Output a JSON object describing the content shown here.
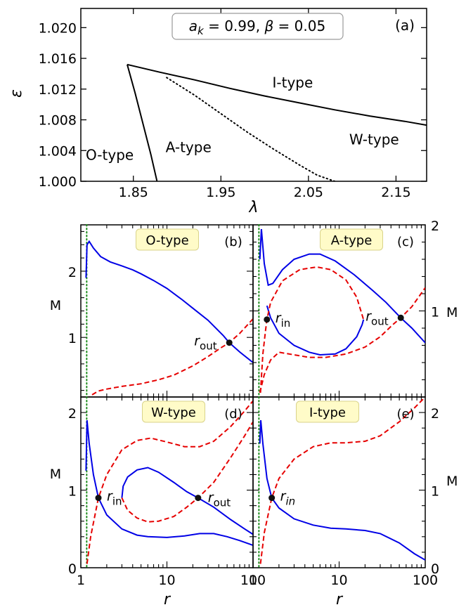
{
  "chart_data": [
    {
      "id": "a",
      "type": "line",
      "panel_label": "(a)",
      "legend_box": "a_k = 0.99, β = 0.05",
      "params": {
        "a_k": "0.99",
        "beta": "0.05"
      },
      "xlabel": "λ",
      "ylabel": "ε",
      "xlim": [
        1.79,
        2.185
      ],
      "ylim": [
        1.0,
        1.0225
      ],
      "xticks": [
        {
          "v": 1.85,
          "label": "1.85"
        },
        {
          "v": 1.95,
          "label": "1.95"
        },
        {
          "v": 2.05,
          "label": "2.05"
        },
        {
          "v": 2.15,
          "label": "2.15"
        }
      ],
      "yticks": [
        {
          "v": 1.0,
          "label": "1.000"
        },
        {
          "v": 1.004,
          "label": "1.004"
        },
        {
          "v": 1.008,
          "label": "1.008"
        },
        {
          "v": 1.012,
          "label": "1.012"
        },
        {
          "v": 1.016,
          "label": "1.016"
        },
        {
          "v": 1.02,
          "label": "1.020"
        }
      ],
      "series": [
        {
          "style": "solid",
          "points": [
            [
              1.843,
              1.0152
            ],
            [
              1.852,
              1.0115
            ],
            [
              1.861,
              1.0075
            ],
            [
              1.87,
              1.0035
            ],
            [
              1.877,
              1.0
            ]
          ]
        },
        {
          "style": "solid",
          "points": [
            [
              1.843,
              1.0152
            ],
            [
              1.88,
              1.0142
            ],
            [
              1.92,
              1.0132
            ],
            [
              1.96,
              1.0121
            ],
            [
              2.0,
              1.0111
            ],
            [
              2.04,
              1.0102
            ],
            [
              2.08,
              1.0093
            ],
            [
              2.12,
              1.0085
            ],
            [
              2.16,
              1.0078
            ],
            [
              2.185,
              1.0073
            ]
          ]
        },
        {
          "style": "dotted",
          "points": [
            [
              1.888,
              1.0135
            ],
            [
              1.92,
              1.0112
            ],
            [
              1.95,
              1.0088
            ],
            [
              1.98,
              1.0064
            ],
            [
              2.01,
              1.0042
            ],
            [
              2.04,
              1.0021
            ],
            [
              2.06,
              1.0008
            ],
            [
              2.08,
              1.0
            ]
          ]
        }
      ],
      "annotations": [
        {
          "text": "O-type",
          "x": 1.823,
          "y": 1.0028
        },
        {
          "text": "A-type",
          "x": 1.913,
          "y": 1.0038
        },
        {
          "text": "I-type",
          "x": 2.032,
          "y": 1.0122
        },
        {
          "text": "W-type",
          "x": 2.125,
          "y": 1.0048
        }
      ]
    },
    {
      "id": "b",
      "type": "line",
      "panel_label": "(b)",
      "title": "O-type",
      "xlabel": "",
      "ylabel": "M",
      "xscale": "log",
      "xlim": [
        1,
        100
      ],
      "ylim": [
        0.1,
        2.7
      ],
      "yticks": [
        {
          "v": 1,
          "label": "1"
        },
        {
          "v": 2,
          "label": "2"
        }
      ],
      "vline_x": 1.17,
      "series": [
        {
          "style": "solid",
          "color": "#0000e6",
          "points": [
            [
              1.15,
              1.9
            ],
            [
              1.18,
              2.4
            ],
            [
              1.25,
              2.45
            ],
            [
              1.4,
              2.35
            ],
            [
              1.7,
              2.22
            ],
            [
              2.2,
              2.14
            ],
            [
              3,
              2.08
            ],
            [
              4,
              2.02
            ],
            [
              5,
              1.96
            ],
            [
              7,
              1.86
            ],
            [
              10,
              1.74
            ],
            [
              15,
              1.57
            ],
            [
              20,
              1.44
            ],
            [
              30,
              1.26
            ],
            [
              45,
              1.03
            ],
            [
              53,
              0.92
            ],
            [
              70,
              0.78
            ],
            [
              100,
              0.62
            ]
          ]
        },
        {
          "style": "dashed",
          "color": "#e60000",
          "points": [
            [
              1.17,
              0.05
            ],
            [
              1.3,
              0.12
            ],
            [
              1.6,
              0.19
            ],
            [
              2,
              0.22
            ],
            [
              3,
              0.26
            ],
            [
              5,
              0.3
            ],
            [
              8,
              0.36
            ],
            [
              12,
              0.43
            ],
            [
              20,
              0.57
            ],
            [
              30,
              0.71
            ],
            [
              42,
              0.84
            ],
            [
              53,
              0.92
            ],
            [
              70,
              1.06
            ],
            [
              100,
              1.28
            ]
          ]
        }
      ],
      "markers": [
        {
          "x": 53,
          "y": 0.92,
          "label": "r_out"
        }
      ]
    },
    {
      "id": "c",
      "type": "line",
      "panel_label": "(c)",
      "title": "A-type",
      "xlabel": "",
      "ylabel": "M",
      "xscale": "log",
      "xlim": [
        1,
        100
      ],
      "ylim": [
        0,
        2
      ],
      "yticks": [
        {
          "v": 1,
          "label": "1"
        },
        {
          "v": 2,
          "label": "2"
        }
      ],
      "vline_x": 1.17,
      "series": [
        {
          "style": "solid",
          "color": "#0000e6",
          "points": [
            [
              1.2,
              1.6
            ],
            [
              1.25,
              1.95
            ],
            [
              1.35,
              1.55
            ],
            [
              1.5,
              1.3
            ],
            [
              1.7,
              1.32
            ],
            [
              2.2,
              1.48
            ],
            [
              3,
              1.6
            ],
            [
              4.5,
              1.66
            ],
            [
              6,
              1.66
            ],
            [
              9,
              1.58
            ],
            [
              15,
              1.42
            ],
            [
              25,
              1.23
            ],
            [
              35,
              1.1
            ],
            [
              52,
              0.92
            ],
            [
              70,
              0.8
            ],
            [
              100,
              0.63
            ]
          ]
        },
        {
          "style": "solid",
          "color": "#0000e6",
          "points": [
            [
              1.45,
              1.06
            ],
            [
              1.6,
              0.92
            ],
            [
              2,
              0.74
            ],
            [
              3,
              0.6
            ],
            [
              4.5,
              0.52
            ],
            [
              6,
              0.49
            ],
            [
              9,
              0.5
            ],
            [
              12,
              0.56
            ],
            [
              16,
              0.7
            ],
            [
              18.5,
              0.84
            ],
            [
              19.2,
              0.9
            ]
          ]
        },
        {
          "style": "dashed",
          "color": "#e60000",
          "points": [
            [
              1.22,
              0.05
            ],
            [
              1.3,
              0.5
            ],
            [
              1.4,
              0.78
            ],
            [
              1.45,
              0.9
            ],
            [
              1.6,
              1.1
            ],
            [
              2.2,
              1.35
            ],
            [
              3.5,
              1.48
            ],
            [
              5.5,
              1.51
            ],
            [
              8,
              1.48
            ],
            [
              12,
              1.36
            ],
            [
              16,
              1.16
            ],
            [
              19.2,
              0.9
            ]
          ]
        },
        {
          "style": "dashed",
          "color": "#e60000",
          "points": [
            [
              1.2,
              0.05
            ],
            [
              1.35,
              0.26
            ],
            [
              1.6,
              0.43
            ],
            [
              2,
              0.52
            ],
            [
              3,
              0.49
            ],
            [
              4.5,
              0.46
            ],
            [
              7,
              0.46
            ],
            [
              12,
              0.5
            ],
            [
              20,
              0.58
            ],
            [
              30,
              0.7
            ],
            [
              42,
              0.84
            ],
            [
              52,
              0.92
            ],
            [
              70,
              1.05
            ],
            [
              100,
              1.27
            ]
          ]
        }
      ],
      "markers": [
        {
          "x": 1.45,
          "y": 0.9,
          "label": "r_in"
        },
        {
          "x": 52,
          "y": 0.92,
          "label": "r_out"
        }
      ]
    },
    {
      "id": "d",
      "type": "line",
      "panel_label": "(d)",
      "title": "W-type",
      "xlabel": "r",
      "ylabel": "M",
      "xscale": "log",
      "xlim": [
        1,
        100
      ],
      "ylim": [
        0,
        2.2
      ],
      "xticks": [
        {
          "v": 1,
          "label": "1"
        },
        {
          "v": 10,
          "label": "10"
        },
        {
          "v": 100,
          "label": "100"
        }
      ],
      "yticks": [
        {
          "v": 0,
          "label": "0"
        },
        {
          "v": 1,
          "label": "1"
        },
        {
          "v": 2,
          "label": "2"
        }
      ],
      "vline_x": 1.17,
      "series": [
        {
          "style": "solid",
          "color": "#0000e6",
          "points": [
            [
              1.15,
              1.25
            ],
            [
              1.18,
              1.9
            ],
            [
              1.25,
              1.6
            ],
            [
              1.4,
              1.2
            ],
            [
              1.6,
              0.9
            ],
            [
              2,
              0.68
            ],
            [
              3,
              0.5
            ],
            [
              4.5,
              0.42
            ],
            [
              6,
              0.4
            ],
            [
              10,
              0.39
            ],
            [
              16,
              0.41
            ],
            [
              24,
              0.44
            ],
            [
              35,
              0.44
            ],
            [
              50,
              0.4
            ],
            [
              70,
              0.35
            ],
            [
              100,
              0.29
            ]
          ]
        },
        {
          "style": "solid",
          "color": "#0000e6",
          "points": [
            [
              3,
              0.9
            ],
            [
              3.1,
              1.05
            ],
            [
              3.5,
              1.17
            ],
            [
              4.5,
              1.26
            ],
            [
              6,
              1.29
            ],
            [
              8,
              1.23
            ],
            [
              12,
              1.1
            ],
            [
              17,
              0.98
            ],
            [
              23,
              0.9
            ],
            [
              35,
              0.78
            ],
            [
              55,
              0.62
            ],
            [
              80,
              0.5
            ],
            [
              100,
              0.43
            ]
          ]
        },
        {
          "style": "dashed",
          "color": "#e60000",
          "points": [
            [
              1.18,
              0.05
            ],
            [
              1.3,
              0.4
            ],
            [
              1.6,
              0.9
            ],
            [
              2,
              1.2
            ],
            [
              3,
              1.52
            ],
            [
              4.5,
              1.64
            ],
            [
              6.5,
              1.67
            ],
            [
              10,
              1.62
            ],
            [
              16,
              1.56
            ],
            [
              24,
              1.56
            ],
            [
              35,
              1.63
            ],
            [
              55,
              1.82
            ],
            [
              80,
              2.02
            ],
            [
              100,
              2.15
            ]
          ]
        },
        {
          "style": "dashed",
          "color": "#e60000",
          "points": [
            [
              3,
              0.9
            ],
            [
              3.5,
              0.74
            ],
            [
              4.5,
              0.64
            ],
            [
              6,
              0.59
            ],
            [
              8,
              0.6
            ],
            [
              12,
              0.66
            ],
            [
              17,
              0.78
            ],
            [
              23,
              0.9
            ],
            [
              35,
              1.1
            ],
            [
              55,
              1.42
            ],
            [
              80,
              1.7
            ],
            [
              100,
              1.88
            ]
          ]
        }
      ],
      "markers": [
        {
          "x": 1.6,
          "y": 0.9,
          "label": "r_in"
        },
        {
          "x": 23,
          "y": 0.9,
          "label": "r_out"
        }
      ]
    },
    {
      "id": "e",
      "type": "line",
      "panel_label": "(e)",
      "title": "I-type",
      "xlabel": "r",
      "ylabel": "M",
      "xscale": "log",
      "xlim": [
        1,
        100
      ],
      "ylim": [
        0,
        2.2
      ],
      "xticks": [
        {
          "v": 1,
          "label": "1"
        },
        {
          "v": 10,
          "label": "10"
        },
        {
          "v": 100,
          "label": "100"
        }
      ],
      "yticks": [
        {
          "v": 0,
          "label": "0"
        },
        {
          "v": 1,
          "label": "1"
        },
        {
          "v": 2,
          "label": "2"
        }
      ],
      "vline_x": 1.17,
      "series": [
        {
          "style": "solid",
          "color": "#0000e6",
          "points": [
            [
              1.2,
              1.6
            ],
            [
              1.23,
              1.9
            ],
            [
              1.3,
              1.6
            ],
            [
              1.45,
              1.15
            ],
            [
              1.65,
              0.9
            ],
            [
              2,
              0.77
            ],
            [
              3,
              0.63
            ],
            [
              5,
              0.55
            ],
            [
              8,
              0.51
            ],
            [
              12,
              0.5
            ],
            [
              20,
              0.48
            ],
            [
              30,
              0.44
            ],
            [
              50,
              0.32
            ],
            [
              75,
              0.18
            ],
            [
              100,
              0.1
            ]
          ]
        },
        {
          "style": "dashed",
          "color": "#e60000",
          "points": [
            [
              1.22,
              0.05
            ],
            [
              1.35,
              0.45
            ],
            [
              1.65,
              0.9
            ],
            [
              2,
              1.15
            ],
            [
              3,
              1.4
            ],
            [
              5,
              1.56
            ],
            [
              8,
              1.61
            ],
            [
              12,
              1.61
            ],
            [
              20,
              1.63
            ],
            [
              30,
              1.7
            ],
            [
              50,
              1.88
            ],
            [
              75,
              2.06
            ],
            [
              100,
              2.2
            ]
          ]
        }
      ],
      "markers": [
        {
          "x": 1.65,
          "y": 0.9,
          "label": "r_in"
        }
      ]
    }
  ]
}
